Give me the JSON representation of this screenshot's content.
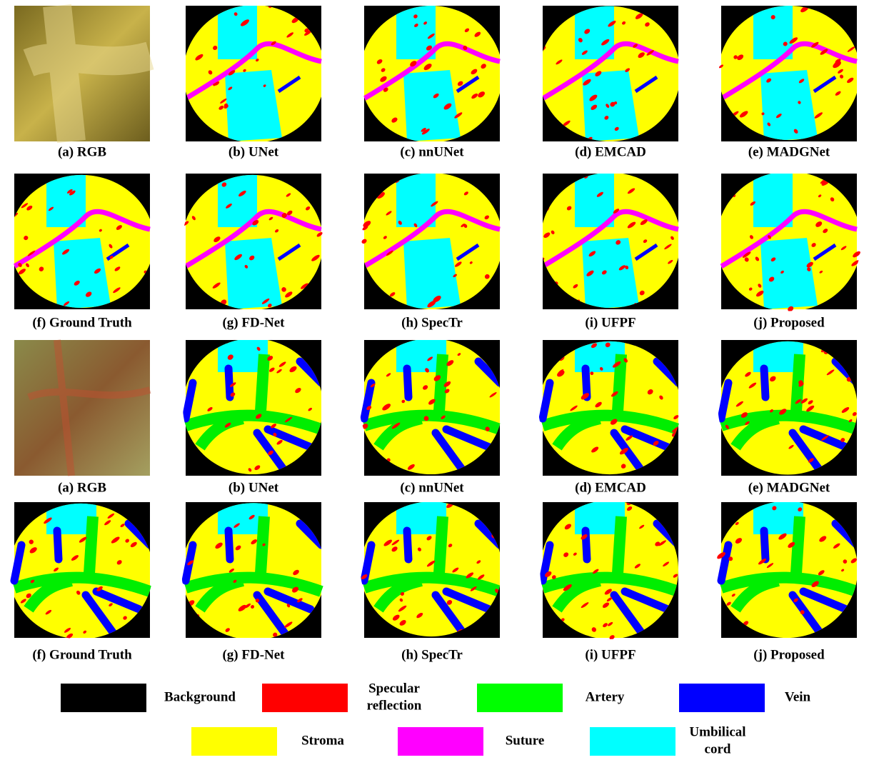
{
  "figure": {
    "rows": [
      [
        "(a) RGB",
        "(b) UNet",
        "(c) nnUNet",
        "(d) EMCAD",
        "(e) MADGNet"
      ],
      [
        "(f) Ground Truth",
        "(g) FD-Net",
        "(h) SpecTr",
        "(i) UFPF",
        "(j) Proposed"
      ],
      [
        "(a) RGB",
        "(b) UNet",
        "(c) nnUNet",
        "(d) EMCAD",
        "(e) MADGNet"
      ],
      [
        "(f) Ground Truth",
        "(g) FD-Net",
        "(h) SpecTr",
        "(i) UFPF",
        "(j) Proposed"
      ]
    ],
    "legend": [
      {
        "label": [
          "Background"
        ],
        "color": "#000000"
      },
      {
        "label": [
          "Specular",
          "reflection"
        ],
        "color": "#ff0000"
      },
      {
        "label": [
          "Artery"
        ],
        "color": "#00ff00"
      },
      {
        "label": [
          "Vein"
        ],
        "color": "#0000ff"
      },
      {
        "label": [
          "Stroma"
        ],
        "color": "#ffff00"
      },
      {
        "label": [
          "Suture"
        ],
        "color": "#ff00ff"
      },
      {
        "label": [
          "Umbilical",
          "cord"
        ],
        "color": "#00ffff"
      }
    ]
  }
}
